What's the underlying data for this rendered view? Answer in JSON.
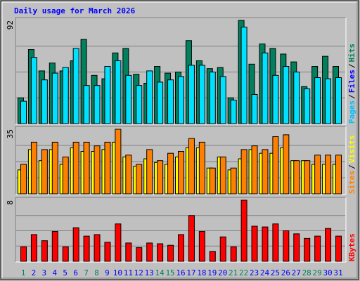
{
  "chart_data": {
    "type": "bar",
    "title": "Daily usage for March 2026",
    "categories": [
      "1",
      "2",
      "3",
      "4",
      "5",
      "6",
      "7",
      "8",
      "9",
      "10",
      "11",
      "12",
      "13",
      "14",
      "15",
      "16",
      "17",
      "18",
      "19",
      "20",
      "21",
      "22",
      "23",
      "24",
      "25",
      "26",
      "27",
      "28",
      "29",
      "30",
      "31"
    ],
    "category_colors": [
      "#00805c",
      "#0000ff",
      "#0000ff",
      "#0000ff",
      "#0000ff",
      "#0000ff",
      "#00805c",
      "#00805c",
      "#0000ff",
      "#0000ff",
      "#0000ff",
      "#0000ff",
      "#0000ff",
      "#00805c",
      "#00805c",
      "#0000ff",
      "#0000ff",
      "#0000ff",
      "#0000ff",
      "#0000ff",
      "#00805c",
      "#00805c",
      "#0000ff",
      "#0000ff",
      "#0000ff",
      "#0000ff",
      "#0000ff",
      "#00805c",
      "#00805c",
      "#0000ff",
      "#0000ff"
    ],
    "legend_separator": "/",
    "panels": [
      {
        "ylim": [
          0,
          92
        ],
        "ylabel": "92",
        "legend": [
          {
            "label": "Pages",
            "color": "#00c0ff"
          },
          {
            "label": "Files",
            "color": "#0000ff"
          },
          {
            "label": "Hits",
            "color": "#00805c"
          }
        ],
        "series": [
          {
            "name": "Hits",
            "color": "#00805c",
            "values": [
              23,
              66,
              47,
              54,
              47,
              56,
              75,
              43,
              40,
              63,
              67,
              44,
              36,
              51,
              45,
              46,
              74,
              56,
              49,
              50,
              23,
              92,
              53,
              71,
              67,
              62,
              55,
              33,
              51,
              60,
              51
            ]
          },
          {
            "name": "Pages",
            "color": "#00e0ff",
            "values": [
              20,
              59,
              39,
              45,
              50,
              67,
              34,
              34,
              51,
              56,
              43,
              34,
              47,
              37,
              39,
              42,
              52,
              52,
              46,
              42,
              21,
              86,
              26,
              63,
              43,
              51,
              46,
              31,
              41,
              40,
              41
            ]
          }
        ]
      },
      {
        "ylim": [
          0,
          35
        ],
        "ylabel": "35",
        "legend": [
          {
            "label": "Sites",
            "color": "#ff8000"
          },
          {
            "label": "Visits",
            "color": "#ffff00"
          }
        ],
        "series": [
          {
            "name": "Visits",
            "color": "#ffff00",
            "values": [
              13,
              24,
              18,
              24,
              16,
              25,
              23,
              23,
              24,
              28,
              20,
              15,
              19,
              17,
              16,
              20,
              25,
              25,
              14,
              20,
              13,
              19,
              24,
              22,
              22,
              25,
              18,
              18,
              16,
              16,
              16
            ]
          },
          {
            "name": "Sites",
            "color": "#ff8000",
            "values": [
              16,
              28,
              24,
              28,
              20,
              28,
              28,
              26,
              28,
              35,
              21,
              16,
              24,
              18,
              22,
              23,
              30,
              28,
              14,
              20,
              14,
              24,
              26,
              24,
              31,
              32,
              18,
              18,
              21,
              21,
              21
            ]
          }
        ]
      },
      {
        "ylim": [
          0,
          8
        ],
        "ylabel": "8",
        "legend": [
          {
            "label": "KBytes",
            "color": "#ff0000"
          }
        ],
        "series": [
          {
            "name": "KBytes",
            "color": "#ff0000",
            "values": [
              1.9,
              3.5,
              2.7,
              3.9,
              1.9,
              4.4,
              3.3,
              3.5,
              2.5,
              4.9,
              2.4,
              1.8,
              2.4,
              2.3,
              2.1,
              3.5,
              6.0,
              3.9,
              1.3,
              3.2,
              1.9,
              8.0,
              4.6,
              4.5,
              4.9,
              4.0,
              3.6,
              3.0,
              3.3,
              4.3,
              3.3
            ]
          }
        ]
      }
    ]
  }
}
